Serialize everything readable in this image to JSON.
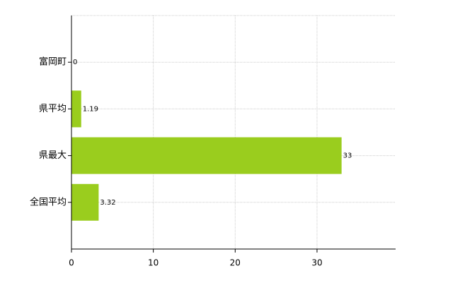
{
  "chart_data": {
    "type": "hbar",
    "categories": [
      "富岡町",
      "県平均",
      "県最大",
      "全国平均"
    ],
    "values": [
      0,
      1.19,
      33,
      3.32
    ],
    "color": "#9acd1e",
    "xlim": [
      0,
      39.6
    ],
    "xticks": [
      0,
      10,
      20,
      30
    ],
    "grid": true
  }
}
